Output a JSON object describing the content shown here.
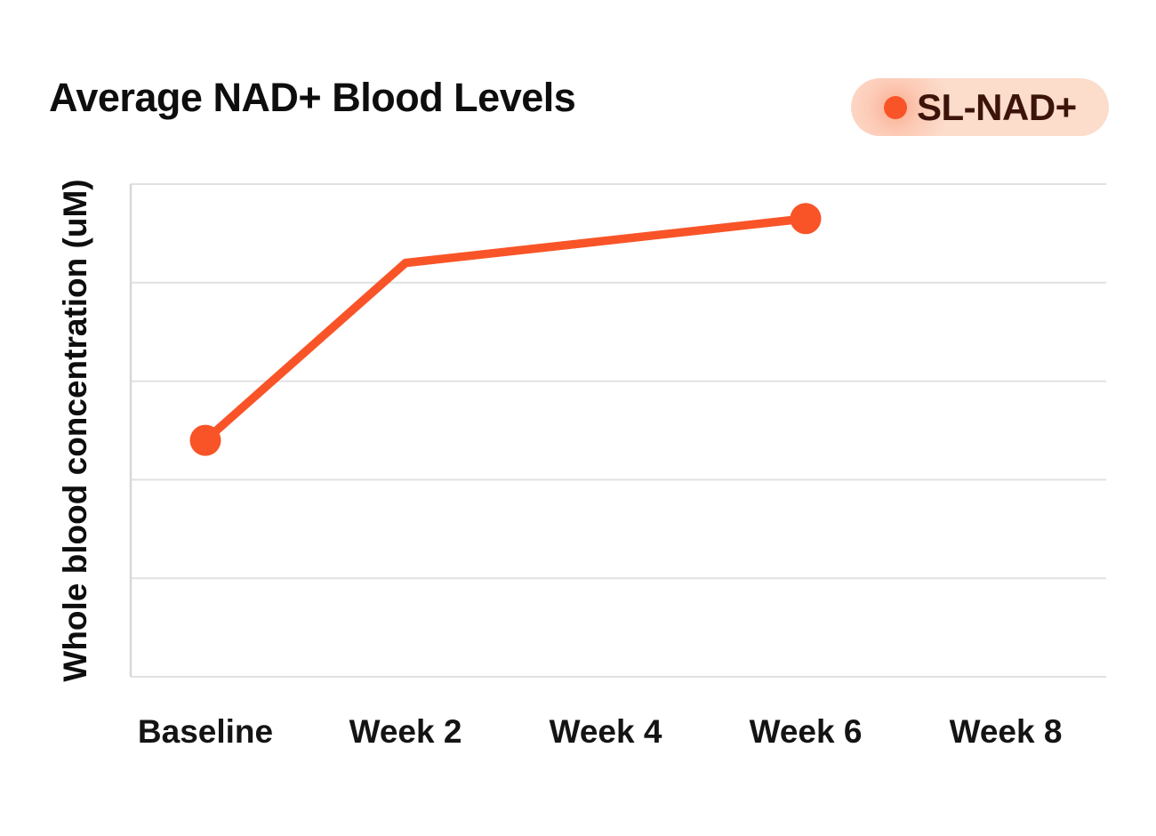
{
  "page": {
    "background": "#ffffff"
  },
  "header": {
    "title": "Average NAD+ Blood Levels"
  },
  "legend": {
    "label": "SL-NAD+",
    "pill_bg": "#fcdccb",
    "glow_color": "#f95428",
    "dot_color": "#f95428",
    "text_color": "#3d140a"
  },
  "chart_data": {
    "type": "line",
    "title": "Average NAD+ Blood Levels",
    "xlabel": "",
    "ylabel": "Whole blood concentration (uM)",
    "categories": [
      "Baseline",
      "Week 2",
      "Week 4",
      "Week 6",
      "Week 8"
    ],
    "series": [
      {
        "name": "SL-NAD+",
        "color": "#f95428",
        "values": [
          48,
          84,
          null,
          93,
          null
        ],
        "markers_at": [
          0,
          3
        ]
      }
    ],
    "ylim": [
      0,
      100
    ],
    "y_tick_labels": [],
    "gridlines": "horizontal-only",
    "gridline_color": "#e1e1e1",
    "axis_line_color": "#d8d8d8",
    "label_color": "#141414",
    "legend_position": "top-right",
    "note": "Y axis shows no numeric tick labels; values estimated on 0-100 scale with gridlines at 0/20/40/60/80/100."
  }
}
